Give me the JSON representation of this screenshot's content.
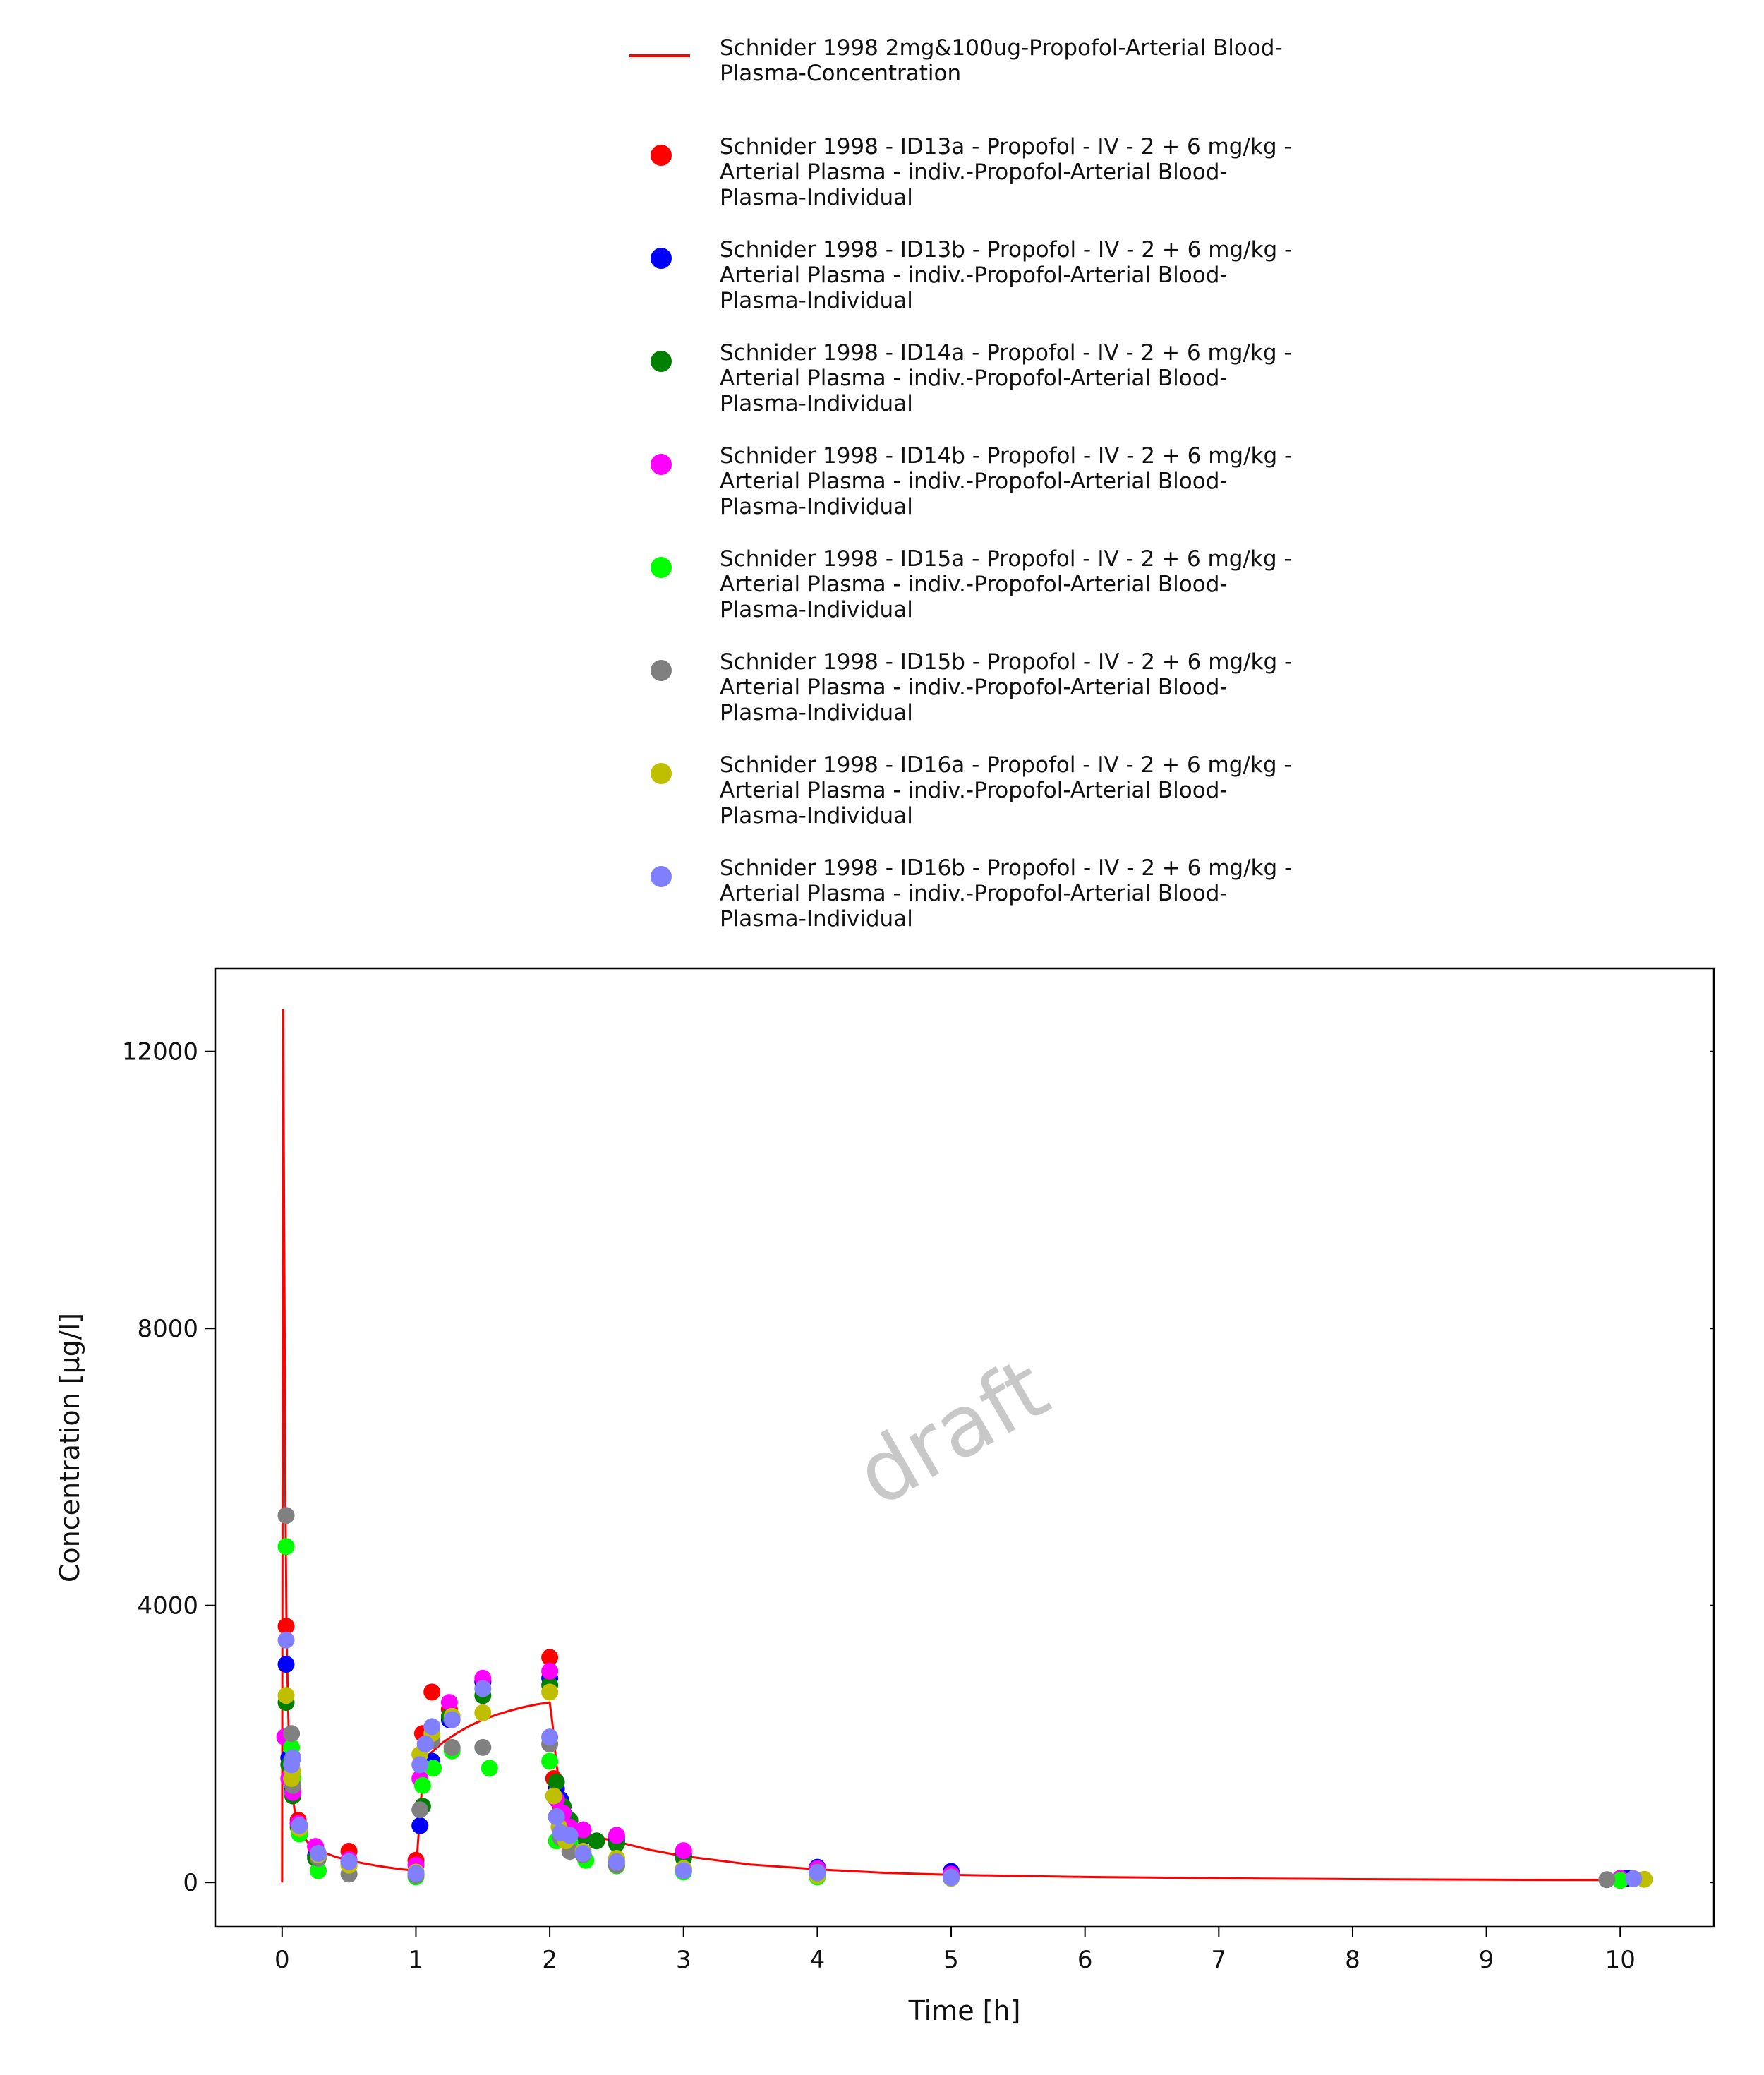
{
  "chart_data": {
    "type": "scatter",
    "title": "",
    "xlabel": "Time [h]",
    "ylabel": "Concentration [µg/l]",
    "xlim": [
      -0.5,
      10.7
    ],
    "ylim": [
      -640,
      13200
    ],
    "x_ticks": [
      0,
      1,
      2,
      3,
      4,
      5,
      6,
      7,
      8,
      9,
      10
    ],
    "y_ticks": [
      0,
      4000,
      8000,
      12000
    ],
    "x_tick_labels": [
      "0",
      "1",
      "2",
      "3",
      "4",
      "5",
      "6",
      "7",
      "8",
      "9",
      "10"
    ],
    "y_tick_labels": [
      "0",
      "4000",
      "8000",
      "12000"
    ],
    "grid": false,
    "legend_position": "top",
    "watermark": "draft",
    "series": [
      {
        "name": "Schnider 1998 2mg&100ug-Propofol-Arterial Blood-Plasma-Concentration",
        "kind": "line",
        "color": "#ff0000",
        "x": [
          0,
          0.008,
          0.017,
          0.025,
          0.033,
          0.05,
          0.075,
          0.1,
          0.15,
          0.2,
          0.3,
          0.4,
          0.5,
          0.6,
          0.7,
          0.8,
          0.9,
          1.0,
          1.02,
          1.05,
          1.1,
          1.2,
          1.3,
          1.4,
          1.5,
          1.6,
          1.7,
          1.8,
          1.9,
          2.0,
          2.02,
          2.05,
          2.1,
          2.15,
          2.2,
          2.3,
          2.5,
          2.75,
          3.0,
          3.5,
          4.0,
          4.5,
          5.0,
          6.0,
          7.0,
          8.0,
          9.0,
          10.0
        ],
        "y": [
          0,
          12600,
          9000,
          5500,
          3600,
          2100,
          1300,
          950,
          680,
          560,
          440,
          370,
          320,
          280,
          245,
          215,
          190,
          170,
          700,
          1500,
          1850,
          2020,
          2150,
          2260,
          2350,
          2420,
          2480,
          2530,
          2570,
          2600,
          2300,
          1700,
          1150,
          900,
          780,
          680,
          590,
          470,
          380,
          260,
          190,
          140,
          110,
          80,
          60,
          48,
          40,
          35
        ]
      },
      {
        "name": "Schnider 1998 - ID13a - Propofol - IV - 2 + 6 mg/kg - Arterial Plasma - indiv.-Propofol-Arterial Blood-Plasma-Individual",
        "kind": "points",
        "color": "#ff0000",
        "x": [
          0.03,
          0.05,
          0.08,
          0.12,
          0.25,
          0.5,
          1.0,
          1.05,
          1.12,
          1.25,
          1.5,
          2.0,
          2.03,
          2.05,
          2.08,
          2.12,
          2.25,
          2.5,
          3.0,
          4.0,
          5.0,
          10.0
        ],
        "y": [
          3700,
          2100,
          1400,
          900,
          520,
          450,
          320,
          2150,
          2750,
          2500,
          2900,
          3250,
          1500,
          1350,
          1050,
          850,
          750,
          650,
          420,
          180,
          110,
          45
        ]
      },
      {
        "name": "Schnider 1998 - ID13b - Propofol - IV - 2 + 6 mg/kg - Arterial Plasma - indiv.-Propofol-Arterial Blood-Plasma-Individual",
        "kind": "points",
        "color": "#0000ff",
        "x": [
          0.03,
          0.05,
          0.08,
          0.12,
          0.25,
          0.5,
          1.0,
          1.03,
          1.12,
          1.25,
          1.5,
          2.0,
          2.05,
          2.08,
          2.12,
          2.25,
          2.5,
          3.0,
          4.0,
          5.0,
          10.05
        ],
        "y": [
          3150,
          1800,
          1350,
          850,
          380,
          300,
          150,
          820,
          1750,
          2350,
          2900,
          2950,
          1350,
          1200,
          950,
          650,
          600,
          380,
          220,
          160,
          60
        ]
      },
      {
        "name": "Schnider 1998 - ID14a - Propofol - IV - 2 + 6 mg/kg - Arterial Plasma - indiv.-Propofol-Arterial Blood-Plasma-Individual",
        "kind": "points",
        "color": "#008000",
        "x": [
          0.03,
          0.05,
          0.08,
          0.12,
          0.25,
          0.5,
          1.0,
          1.05,
          1.12,
          1.25,
          1.5,
          2.0,
          2.05,
          2.1,
          2.15,
          2.25,
          2.35,
          2.5,
          3.0,
          4.0,
          5.0,
          10.0
        ],
        "y": [
          2600,
          1700,
          1250,
          800,
          350,
          250,
          120,
          1100,
          2100,
          2400,
          2700,
          2850,
          1450,
          1100,
          900,
          680,
          600,
          560,
          350,
          150,
          90,
          40
        ]
      },
      {
        "name": "Schnider 1998 - ID14b - Propofol - IV - 2 + 6 mg/kg - Arterial Plasma - indiv.-Propofol-Arterial Blood-Plasma-Individual",
        "kind": "points",
        "color": "#ff00ff",
        "x": [
          0.02,
          0.05,
          0.08,
          0.12,
          0.25,
          0.5,
          1.0,
          1.03,
          1.12,
          1.25,
          1.5,
          2.0,
          2.05,
          2.1,
          2.15,
          2.25,
          2.5,
          3.0,
          4.0,
          5.0,
          10.0
        ],
        "y": [
          2100,
          1500,
          1300,
          850,
          520,
          330,
          250,
          1500,
          2050,
          2600,
          2950,
          3050,
          1200,
          1000,
          800,
          760,
          680,
          460,
          200,
          120,
          60
        ]
      },
      {
        "name": "Schnider 1998 - ID15a - Propofol - IV - 2 + 6 mg/kg - Arterial Plasma - indiv.-Propofol-Arterial Blood-Plasma-Individual",
        "kind": "points",
        "color": "#00ff00",
        "x": [
          0.03,
          0.07,
          0.08,
          0.13,
          0.27,
          1.0,
          1.05,
          1.13,
          1.27,
          1.55,
          2.0,
          2.05,
          2.1,
          2.15,
          2.27,
          2.5,
          3.0,
          4.0,
          5.0,
          10.0
        ],
        "y": [
          4850,
          1950,
          1500,
          700,
          170,
          80,
          1400,
          1650,
          1900,
          1650,
          1750,
          600,
          700,
          580,
          320,
          240,
          150,
          80,
          60,
          30
        ]
      },
      {
        "name": "Schnider 1998 - ID15b - Propofol - IV - 2 + 6 mg/kg - Arterial Plasma - indiv.-Propofol-Arterial Blood-Plasma-Individual",
        "kind": "points",
        "color": "#808080",
        "x": [
          0.03,
          0.07,
          0.08,
          0.13,
          0.27,
          0.5,
          1.0,
          1.03,
          1.12,
          1.27,
          1.5,
          2.0,
          2.05,
          2.08,
          2.15,
          2.25,
          2.5,
          3.0,
          4.0,
          5.0,
          9.9
        ],
        "y": [
          5300,
          2150,
          1400,
          800,
          350,
          120,
          100,
          1050,
          2050,
          1950,
          1950,
          2000,
          950,
          650,
          450,
          400,
          250,
          200,
          150,
          80,
          40
        ]
      },
      {
        "name": "Schnider 1998 - ID16a - Propofol - IV - 2 + 6 mg/kg - Arterial Plasma - indiv.-Propofol-Arterial Blood-Plasma-Individual",
        "kind": "points",
        "color": "#bfbf00",
        "x": [
          0.03,
          0.07,
          0.08,
          0.13,
          0.27,
          0.5,
          1.0,
          1.03,
          1.12,
          1.27,
          1.5,
          2.0,
          2.03,
          2.07,
          2.12,
          2.25,
          2.5,
          3.0,
          4.0,
          5.0,
          10.18
        ],
        "y": [
          2700,
          1500,
          1600,
          780,
          400,
          250,
          150,
          1850,
          2150,
          2400,
          2450,
          2750,
          1250,
          800,
          600,
          450,
          350,
          200,
          100,
          60,
          45
        ]
      },
      {
        "name": "Schnider 1998 - ID16b - Propofol - IV - 2 + 6 mg/kg - Arterial Plasma - indiv.-Propofol-Arterial Blood-Plasma-Individual",
        "kind": "points",
        "color": "#8080ff",
        "x": [
          0.03,
          0.07,
          0.08,
          0.13,
          0.27,
          0.5,
          1.0,
          1.03,
          1.07,
          1.12,
          1.27,
          1.5,
          2.0,
          2.05,
          2.08,
          2.15,
          2.25,
          2.5,
          3.0,
          4.0,
          5.0,
          10.1
        ],
        "y": [
          3500,
          1700,
          1800,
          820,
          420,
          300,
          130,
          1700,
          2000,
          2250,
          2350,
          2800,
          2100,
          950,
          720,
          680,
          420,
          300,
          170,
          140,
          70,
          55
        ]
      }
    ]
  }
}
